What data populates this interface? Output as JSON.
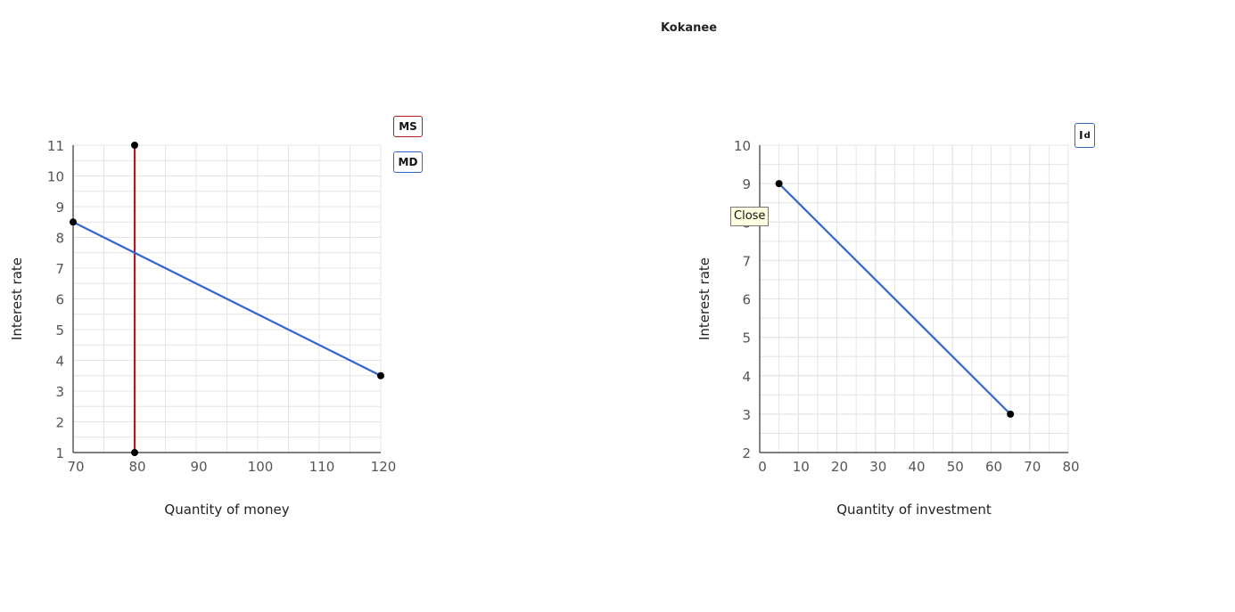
{
  "page": {
    "title": "Kokanee"
  },
  "tooltip": {
    "text": "Close"
  },
  "chart_data": [
    {
      "type": "line",
      "xlabel": "Quantity of money",
      "ylabel": "Interest rate",
      "xlim": [
        70,
        120
      ],
      "ylim": [
        1,
        11
      ],
      "xticks": [
        70,
        80,
        90,
        100,
        110,
        120
      ],
      "yticks": [
        1,
        2,
        3,
        4,
        5,
        6,
        7,
        8,
        9,
        10,
        11
      ],
      "grid": true,
      "legend_placement": "top-right",
      "series": [
        {
          "name": "MS",
          "color": "#b01c1c",
          "points": [
            [
              80,
              11
            ],
            [
              80,
              1
            ]
          ]
        },
        {
          "name": "MD",
          "color": "#3366cc",
          "points": [
            [
              70,
              8.5
            ],
            [
              120,
              3.5
            ]
          ]
        }
      ]
    },
    {
      "type": "line",
      "xlabel": "Quantity of investment",
      "ylabel": "Interest rate",
      "xlim": [
        0,
        80
      ],
      "ylim": [
        2,
        10
      ],
      "xticks": [
        0,
        10,
        20,
        30,
        40,
        50,
        60,
        70,
        80
      ],
      "yticks": [
        2,
        3,
        4,
        5,
        6,
        7,
        8,
        9,
        10
      ],
      "grid": true,
      "legend_placement": "top-right",
      "series": [
        {
          "name": "I",
          "subscript": "d",
          "color": "#3366cc",
          "points": [
            [
              5,
              9
            ],
            [
              65,
              3
            ]
          ]
        }
      ]
    }
  ]
}
